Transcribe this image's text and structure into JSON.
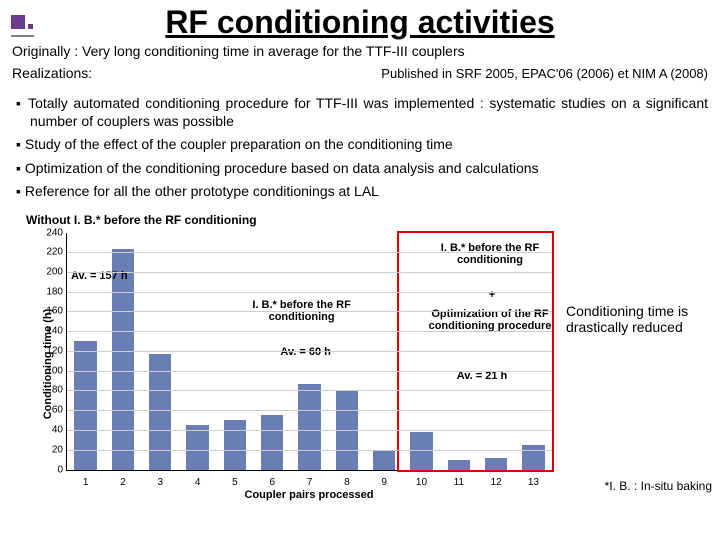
{
  "logo": {
    "square_color": "#6a3b8f",
    "dot_color": "#6a3b8f"
  },
  "title": "RF conditioning activities",
  "subtitle": "Originally : Very long conditioning time in average for the TTF-III couplers",
  "realizations_label": "Realizations:",
  "published": "Published in SRF 2005, EPAC'06 (2006) et NIM A (2008)",
  "bullets": [
    "Totally automated conditioning procedure for TTF-III was implemented : systematic studies on a significant number of couplers was possible",
    "Study of the effect of the coupler preparation on the conditioning time",
    "Optimization of the conditioning procedure based on data analysis and calculations",
    "Reference for all the other prototype conditionings at LAL"
  ],
  "chart": {
    "title": "Without I. B.* before the RF conditioning",
    "ylabel": "Conditioning time (h)",
    "xlabel": "Coupler pairs processed",
    "ymin": 0,
    "ymax": 240,
    "ytick_step": 20,
    "categories": [
      "1",
      "2",
      "3",
      "4",
      "5",
      "6",
      "7",
      "8",
      "9",
      "10",
      "11",
      "12",
      "13"
    ],
    "values": [
      130,
      223,
      117,
      45,
      50,
      55,
      87,
      80,
      20,
      38,
      10,
      12,
      25
    ],
    "bar_color": "#6a7db5",
    "grid_color": "#cccccc",
    "border_color": "#000000",
    "annotations": {
      "av1": "Av. = 157 h",
      "mid_label": "I. B.* before the RF conditioning",
      "av2": "Av. = 60 h",
      "box_label": "I. B.* before the RF conditioning",
      "box_plus": "+",
      "box_opt": "Optimization of the RF conditioning procedure",
      "av3": "Av. = 21 h"
    },
    "rightnote": "Conditioning time is drastically reduced",
    "footnote": "*I. B. : In-situ baking"
  }
}
